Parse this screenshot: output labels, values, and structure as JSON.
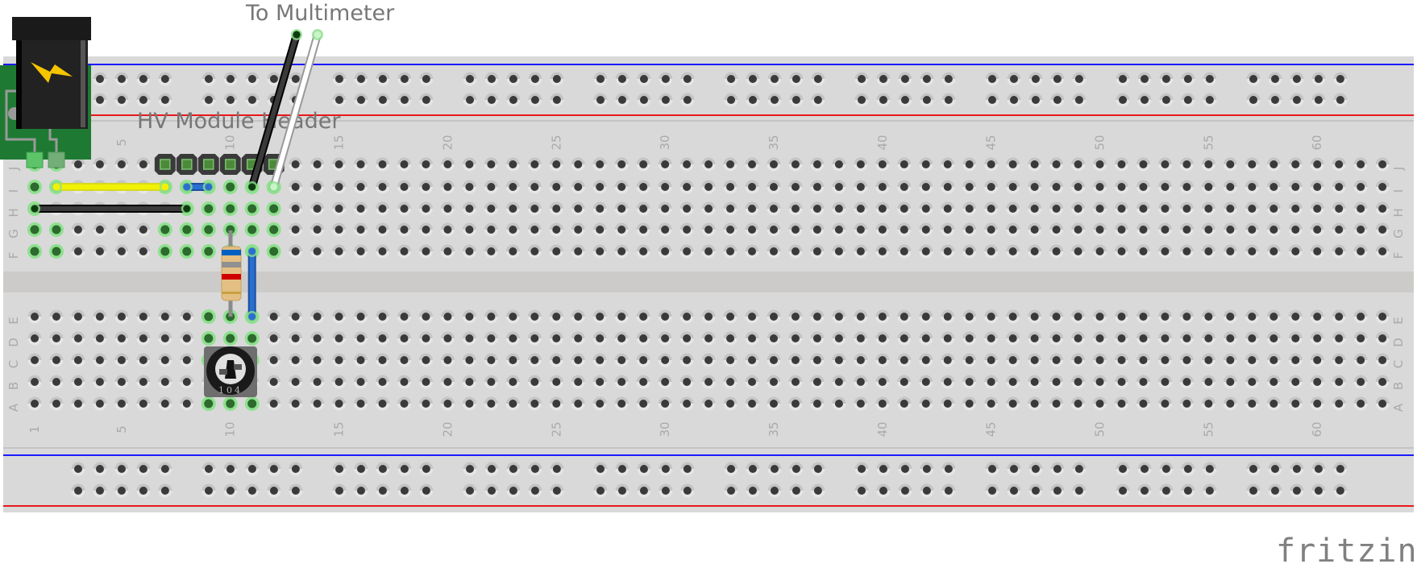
{
  "annotations": {
    "multimeter_label": "To Multimeter",
    "header_label": "HV Module Header"
  },
  "breadboard": {
    "columns": 63,
    "row_letters_top": [
      "J",
      "I",
      "H",
      "G",
      "F"
    ],
    "row_letters_bottom": [
      "E",
      "D",
      "C",
      "B",
      "A"
    ],
    "column_numbers": [
      "1",
      "5",
      "10",
      "15",
      "20",
      "25",
      "30",
      "35",
      "40",
      "45",
      "50",
      "55",
      "60"
    ],
    "rail_groups": 10,
    "colors": {
      "board": "#d9d9d9",
      "channel": "#cdcbc9",
      "rail_positive": "#e8191b",
      "rail_negative": "#1a1aff",
      "hole": "#3a3a3a",
      "connected_glow": "#8fe08f",
      "connected_hole": "#2d6a2d"
    }
  },
  "components": {
    "power_jack": {
      "icon": "lightning-icon",
      "body_color": "#1f1f1f",
      "pcb_color": "#1e7a32",
      "bolt_color": "#f5c400"
    },
    "header_pins": {
      "count": 6,
      "row": "J",
      "start_column": 7
    },
    "resistor": {
      "column": 10,
      "from_row": "G",
      "to_row": "E",
      "bands": [
        "#0060c0",
        "#909090",
        "#d00000",
        "#c8a040"
      ]
    },
    "potentiometer": {
      "label": "104",
      "columns": [
        9,
        10,
        11
      ],
      "row": "A"
    },
    "wires": [
      {
        "color": "#f2f200",
        "from": "I2",
        "to": "I7"
      },
      {
        "color": "#2a6fd0",
        "from": "I8",
        "to": "I9"
      },
      {
        "color": "#3a3a3a",
        "from": "H1",
        "to": "H8"
      },
      {
        "color": "#3a3a3a",
        "from": "I11",
        "to": "multimeter"
      },
      {
        "color": "#ffffff",
        "from": "I12",
        "to": "multimeter"
      },
      {
        "color": "#2a6fd0",
        "from": "F11",
        "to": "E11"
      }
    ]
  },
  "logo": "fritzing"
}
